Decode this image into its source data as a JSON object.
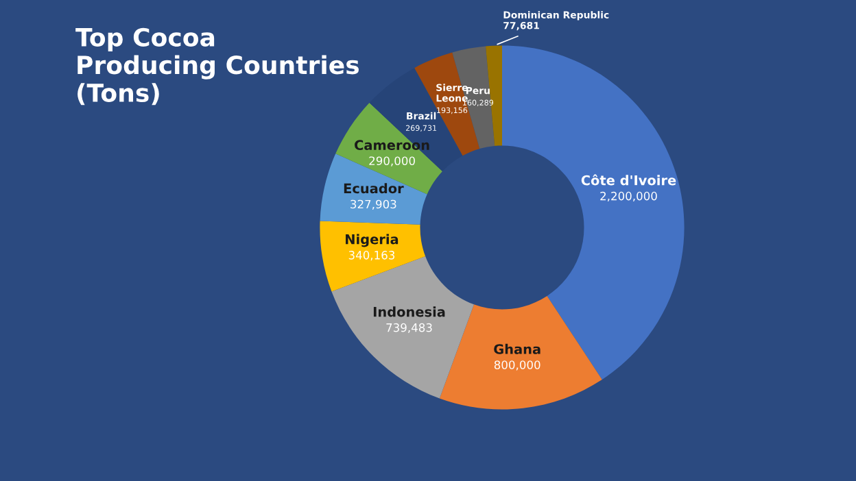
{
  "chart_data": {
    "type": "donut",
    "title": "Top Cocoa\nProducing Countries\n(Tons)",
    "categories": [
      "Côte d'Ivoire",
      "Ghana",
      "Indonesia",
      "Nigeria",
      "Ecuador",
      "Cameroon",
      "Brazil",
      "Sierre\nLeone",
      "Peru",
      "Dominican Republic"
    ],
    "values": [
      2200000,
      800000,
      739483,
      340163,
      327903,
      290000,
      269731,
      193156,
      160289,
      77681
    ],
    "value_labels": [
      "2,200,000",
      "800,000",
      "739,483",
      "340,163",
      "327,903",
      "290,000",
      "269,731",
      "193,156",
      "160,289",
      "77,681"
    ],
    "colors": [
      "#4472c4",
      "#ed7d31",
      "#a5a5a5",
      "#ffc000",
      "#5b9bd5",
      "#70ad47",
      "#264478",
      "#9e480e",
      "#636363",
      "#997300"
    ],
    "legend": false
  }
}
